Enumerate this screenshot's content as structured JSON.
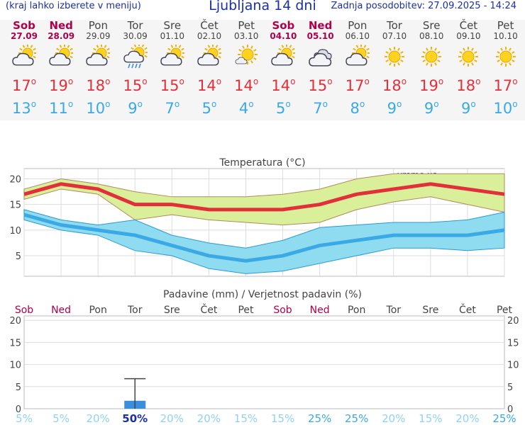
{
  "header": {
    "hint": "(kraj lahko izberete v meniju)",
    "title": "Ljubljana 14 dni",
    "updated": "Zadnja posodobitev: 27.09.2025 - 14:24"
  },
  "days": [
    {
      "name": "Sob",
      "date": "27.09",
      "weekend": true,
      "icon": "partly-cloudy-icon",
      "tmax": "17",
      "tmin": "13"
    },
    {
      "name": "Ned",
      "date": "28.09",
      "weekend": true,
      "icon": "partly-cloudy-icon",
      "tmax": "19",
      "tmin": "11"
    },
    {
      "name": "Pon",
      "date": "29.09",
      "weekend": false,
      "icon": "partly-cloudy-icon",
      "tmax": "18",
      "tmin": "10"
    },
    {
      "name": "Tor",
      "date": "30.09",
      "weekend": false,
      "icon": "sun-cloud-rain-icon",
      "tmax": "15",
      "tmin": "9"
    },
    {
      "name": "Sre",
      "date": "01.10",
      "weekend": false,
      "icon": "partly-cloudy-icon",
      "tmax": "15",
      "tmin": "7"
    },
    {
      "name": "Čet",
      "date": "02.10",
      "weekend": false,
      "icon": "partly-cloudy-icon",
      "tmax": "14",
      "tmin": "5"
    },
    {
      "name": "Pet",
      "date": "03.10",
      "weekend": false,
      "icon": "mostly-sunny-icon",
      "tmax": "14",
      "tmin": "4"
    },
    {
      "name": "Sob",
      "date": "04.10",
      "weekend": true,
      "icon": "partly-cloudy-icon",
      "tmax": "14",
      "tmin": "5"
    },
    {
      "name": "Ned",
      "date": "05.10",
      "weekend": true,
      "icon": "cloudy-icon",
      "tmax": "15",
      "tmin": "7"
    },
    {
      "name": "Pon",
      "date": "06.10",
      "weekend": false,
      "icon": "partly-cloudy-icon",
      "tmax": "17",
      "tmin": "8"
    },
    {
      "name": "Tor",
      "date": "07.10",
      "weekend": false,
      "icon": "sun-icon",
      "tmax": "18",
      "tmin": "9"
    },
    {
      "name": "Sre",
      "date": "08.10",
      "weekend": false,
      "icon": "sun-icon",
      "tmax": "19",
      "tmin": "9"
    },
    {
      "name": "Čet",
      "date": "09.10",
      "weekend": false,
      "icon": "sun-icon",
      "tmax": "18",
      "tmin": "9"
    },
    {
      "name": "Pet",
      "date": "10.10",
      "weekend": false,
      "icon": "sun-icon",
      "tmax": "17",
      "tmin": "10"
    }
  ],
  "colors": {
    "max": "#e2303a",
    "min": "#3aa9e6",
    "weekend": "#b0004a",
    "max_band": "#d9ef99",
    "min_band": "#8fdcf0",
    "bar": "#3a8ee0",
    "pct_low": "#8fd3f4",
    "pct_high": "#3aa9e6"
  },
  "chart_data": [
    {
      "type": "line",
      "title": "Temperatura (°C)",
      "watermark": "vreme.us",
      "ylim": [
        1,
        22
      ],
      "yticks": [
        5,
        10,
        15,
        20
      ],
      "grid": true,
      "series": [
        {
          "name": "max",
          "values": [
            17,
            19,
            18,
            15,
            15,
            14,
            14,
            14,
            15,
            17,
            18,
            19,
            18,
            17
          ],
          "band_high": [
            18,
            20,
            19,
            17.5,
            16.5,
            16.5,
            16.5,
            17,
            18,
            20,
            21,
            21,
            21,
            21
          ],
          "band_low": [
            16,
            18,
            17,
            12,
            13,
            12,
            11.5,
            11,
            11.5,
            14,
            15.5,
            16.5,
            15,
            13.5
          ]
        },
        {
          "name": "min",
          "values": [
            13,
            11,
            10,
            9,
            7,
            5,
            4,
            5,
            7,
            8,
            9,
            9,
            9,
            10
          ],
          "band_high": [
            14,
            12,
            11,
            12,
            9,
            7.5,
            6.5,
            8,
            10.5,
            11,
            11.5,
            11.5,
            12,
            13.5
          ],
          "band_low": [
            12,
            10,
            9,
            6,
            5,
            2.5,
            1.5,
            2,
            3.5,
            5,
            6.5,
            6.5,
            6,
            6.5
          ]
        }
      ]
    },
    {
      "type": "bar",
      "title": "Padavine (mm) / Verjetnost padavin (%)",
      "ylim": [
        0,
        21
      ],
      "yticks": [
        0,
        5,
        10,
        15,
        20
      ],
      "categories": [
        "Sob",
        "Ned",
        "Pon",
        "Tor",
        "Sre",
        "Čet",
        "Pet",
        "Sob",
        "Ned",
        "Pon",
        "Tor",
        "Sre",
        "Čet",
        "Pet"
      ],
      "precip_mm": [
        0,
        0,
        0,
        1.8,
        0,
        0,
        0,
        0,
        0,
        0,
        0,
        0,
        0,
        0
      ],
      "precip_max_mm": [
        0,
        0,
        0,
        6.8,
        0,
        0,
        0,
        0,
        0,
        0,
        0,
        0,
        0,
        0
      ],
      "probability_pct": [
        "5%",
        "5%",
        "20%",
        "50%",
        "20%",
        "20%",
        "15%",
        "15%",
        "25%",
        "25%",
        "20%",
        "15%",
        "20%",
        "25%"
      ]
    }
  ]
}
